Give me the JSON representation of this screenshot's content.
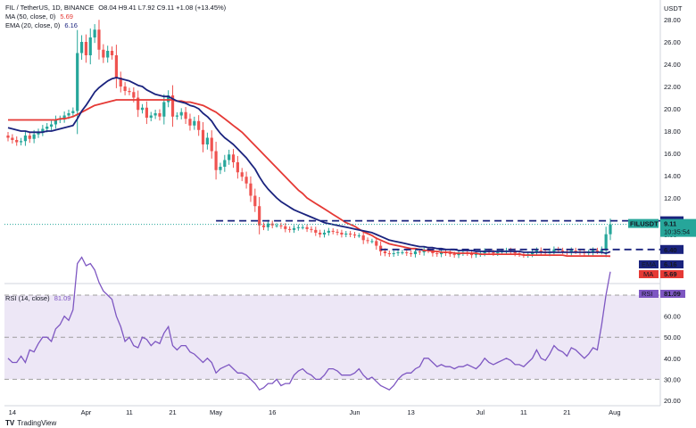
{
  "header": {
    "symbol_line": "FIL / TetherUS, 1D, BINANCE",
    "ohlc": "O8.04  H9.41  L7.92  C9.11  +1.08 (+13.45%)",
    "ma_label": "MA (50, close, 0)",
    "ma_value": "5.69",
    "ema_label": "EMA (20, close, 0)",
    "ema_value": "6.16",
    "rsi_label": "RSI (14, close)",
    "rsi_value": "81.09"
  },
  "branding": {
    "text": "TradingView",
    "logo": "TV"
  },
  "colors": {
    "up": "#26a69a",
    "down": "#ef5350",
    "ema": "#1a237e",
    "ma": "#e53935",
    "rsi": "#7e57c2",
    "level": "#1a237e",
    "band_fill": "#ede7f6"
  },
  "chart_data": {
    "type": "candlestick",
    "currency": "USDT",
    "price_ticks": [
      "28.00",
      "26.00",
      "24.00",
      "22.00",
      "20.00",
      "18.00",
      "16.00",
      "14.00",
      "12.00",
      "8.00",
      "4.00"
    ],
    "price_tick_values": [
      28,
      26,
      24,
      22,
      20,
      18,
      16,
      14,
      12,
      8,
      4
    ],
    "rsi_ticks": [
      "70.00",
      "60.00",
      "50.00",
      "40.00",
      "30.00",
      "20.00"
    ],
    "rsi_tick_values": [
      70,
      60,
      50,
      40,
      30,
      20
    ],
    "rsi_levels": [
      70,
      50,
      30
    ],
    "x_labels": [
      {
        "i": 1,
        "label": "14"
      },
      {
        "i": 18,
        "label": "Apr"
      },
      {
        "i": 28,
        "label": "11"
      },
      {
        "i": 38,
        "label": "21"
      },
      {
        "i": 48,
        "label": "May"
      },
      {
        "i": 61,
        "label": "16"
      },
      {
        "i": 80,
        "label": "Jun"
      },
      {
        "i": 93,
        "label": "13"
      },
      {
        "i": 109,
        "label": "Jul"
      },
      {
        "i": 119,
        "label": "11"
      },
      {
        "i": 129,
        "label": "21"
      },
      {
        "i": 140,
        "label": "Aug"
      }
    ],
    "levels": [
      {
        "value": 9.5,
        "label": "9.50",
        "from": 48
      },
      {
        "value": 6.4,
        "label": "6.40",
        "from": 86
      }
    ],
    "last": {
      "value": 9.11,
      "label": "9.11",
      "symbol": "FILUSDT",
      "countdown": "10:35:54"
    },
    "ema_tag": {
      "label": "EMA",
      "value": "6.16"
    },
    "ma_tag": {
      "label": "MA",
      "value": "5.69"
    },
    "rsi_tag": {
      "label": "RSI",
      "value": "81.09"
    },
    "closes": [
      17.4,
      17.2,
      17.0,
      17.1,
      17.6,
      17.3,
      17.7,
      17.9,
      18.2,
      18.4,
      18.6,
      19.0,
      19.1,
      19.4,
      19.6,
      19.8,
      25.0,
      26.0,
      24.8,
      26.4,
      27.1,
      25.3,
      24.6,
      25.2,
      24.8,
      22.8,
      22.0,
      21.6,
      21.5,
      21.0,
      19.9,
      20.1,
      19.2,
      19.4,
      19.6,
      19.3,
      20.6,
      21.2,
      19.3,
      19.4,
      19.7,
      19.1,
      18.5,
      18.9,
      18.1,
      16.8,
      17.4,
      16.2,
      14.5,
      14.8,
      15.4,
      15.9,
      15.2,
      14.3,
      13.9,
      13.3,
      12.2,
      11.1,
      9.0,
      8.8,
      9.2,
      9.0,
      9.0,
      8.9,
      8.6,
      8.5,
      8.7,
      8.8,
      8.8,
      8.6,
      8.5,
      8.2,
      8.0,
      8.2,
      8.4,
      8.3,
      8.2,
      8.0,
      8.1,
      8.0,
      7.9,
      7.9,
      7.4,
      7.3,
      7.3,
      6.8,
      6.2,
      6.0,
      5.9,
      6.0,
      6.1,
      6.1,
      6.0,
      5.9,
      6.2,
      6.1,
      6.4,
      6.3,
      6.0,
      5.9,
      6.1,
      6.0,
      5.9,
      5.8,
      6.0,
      6.1,
      6.0,
      5.8,
      5.9,
      6.0,
      6.2,
      6.1,
      6.0,
      6.1,
      6.2,
      6.3,
      6.2,
      6.0,
      5.9,
      5.8,
      5.9,
      6.1,
      6.3,
      6.1,
      6.0,
      6.2,
      6.4,
      6.3,
      6.2,
      6.1,
      6.3,
      6.2,
      6.1,
      6.0,
      6.1,
      6.3,
      6.2,
      6.4,
      8.03,
      9.11
    ],
    "ema20": [
      18.3,
      18.2,
      18.1,
      18.0,
      18.0,
      17.9,
      17.9,
      17.9,
      17.9,
      18.0,
      18.0,
      18.1,
      18.2,
      18.3,
      18.4,
      18.5,
      19.1,
      19.8,
      20.3,
      20.9,
      21.5,
      21.9,
      22.2,
      22.5,
      22.7,
      22.8,
      22.7,
      22.6,
      22.5,
      22.3,
      22.1,
      22.0,
      21.7,
      21.5,
      21.3,
      21.2,
      21.1,
      21.1,
      20.9,
      20.7,
      20.6,
      20.5,
      20.3,
      20.2,
      20.0,
      19.6,
      19.3,
      18.9,
      18.3,
      17.8,
      17.4,
      17.1,
      16.8,
      16.4,
      16.0,
      15.6,
      15.1,
      14.6,
      13.9,
      13.3,
      12.8,
      12.4,
      12.0,
      11.6,
      11.3,
      11.0,
      10.7,
      10.5,
      10.3,
      10.1,
      9.9,
      9.7,
      9.5,
      9.3,
      9.2,
      9.1,
      9.0,
      8.9,
      8.8,
      8.7,
      8.6,
      8.5,
      8.4,
      8.3,
      8.2,
      8.0,
      7.8,
      7.6,
      7.4,
      7.3,
      7.2,
      7.1,
      7.0,
      6.9,
      6.8,
      6.7,
      6.7,
      6.6,
      6.6,
      6.5,
      6.5,
      6.4,
      6.4,
      6.4,
      6.3,
      6.3,
      6.3,
      6.3,
      6.2,
      6.2,
      6.2,
      6.2,
      6.2,
      6.2,
      6.2,
      6.2,
      6.2,
      6.2,
      6.2,
      6.1,
      6.1,
      6.1,
      6.1,
      6.1,
      6.1,
      6.1,
      6.1,
      6.1,
      6.1,
      6.1,
      6.1,
      6.1,
      6.1,
      6.1,
      6.1,
      6.1,
      6.1,
      6.1,
      6.0,
      6.16
    ],
    "ma50": [
      19.0,
      19.0,
      19.0,
      19.0,
      19.0,
      19.0,
      19.0,
      19.0,
      19.0,
      19.0,
      19.0,
      19.0,
      19.1,
      19.1,
      19.2,
      19.3,
      19.5,
      19.7,
      19.9,
      20.1,
      20.3,
      20.4,
      20.5,
      20.6,
      20.7,
      20.8,
      20.8,
      20.8,
      20.8,
      20.8,
      20.8,
      20.8,
      20.8,
      20.8,
      20.8,
      20.8,
      20.8,
      20.8,
      20.8,
      20.7,
      20.7,
      20.6,
      20.6,
      20.5,
      20.4,
      20.3,
      20.1,
      19.9,
      19.7,
      19.4,
      19.1,
      18.8,
      18.5,
      18.2,
      17.9,
      17.5,
      17.1,
      16.7,
      16.3,
      15.9,
      15.5,
      15.1,
      14.7,
      14.3,
      13.9,
      13.5,
      13.1,
      12.7,
      12.4,
      12.0,
      11.7,
      11.4,
      11.1,
      10.8,
      10.5,
      10.2,
      9.9,
      9.6,
      9.3,
      9.1,
      8.9,
      8.6,
      8.3,
      8.1,
      7.9,
      7.6,
      7.4,
      7.2,
      7.0,
      6.9,
      6.8,
      6.7,
      6.6,
      6.5,
      6.5,
      6.4,
      6.3,
      6.3,
      6.2,
      6.2,
      6.1,
      6.1,
      6.1,
      6.0,
      6.0,
      6.0,
      6.0,
      6.0,
      6.0,
      5.9,
      5.9,
      5.9,
      5.9,
      5.9,
      5.9,
      5.9,
      5.9,
      5.9,
      5.9,
      5.8,
      5.8,
      5.8,
      5.8,
      5.8,
      5.8,
      5.8,
      5.8,
      5.8,
      5.8,
      5.7,
      5.7,
      5.7,
      5.7,
      5.7,
      5.7,
      5.7,
      5.7,
      5.7,
      5.7,
      5.69
    ],
    "rsi": [
      40,
      38,
      38,
      41,
      38,
      44,
      43,
      47,
      50,
      50,
      48,
      54,
      56,
      60,
      58,
      63,
      85,
      88,
      84,
      85,
      82,
      76,
      72,
      70,
      68,
      60,
      55,
      48,
      50,
      46,
      45,
      50,
      49,
      46,
      48,
      47,
      52,
      55,
      46,
      44,
      46,
      46,
      43,
      42,
      40,
      38,
      40,
      38,
      33,
      35,
      36,
      37,
      35,
      33,
      33,
      32,
      30,
      28,
      25,
      26,
      28,
      28,
      30,
      27,
      28,
      28,
      32,
      34,
      35,
      33,
      32,
      30,
      30,
      32,
      35,
      35,
      34,
      32,
      32,
      32,
      33,
      35,
      32,
      30,
      31,
      29,
      27,
      26,
      25,
      27,
      30,
      32,
      33,
      33,
      35,
      36,
      40,
      40,
      38,
      36,
      37,
      36,
      36,
      35,
      36,
      36,
      37,
      36,
      35,
      37,
      40,
      38,
      37,
      38,
      39,
      40,
      39,
      37,
      37,
      36,
      38,
      40,
      44,
      40,
      39,
      42,
      46,
      44,
      43,
      41,
      45,
      44,
      42,
      40,
      42,
      45,
      44,
      56,
      70,
      81.09
    ]
  }
}
